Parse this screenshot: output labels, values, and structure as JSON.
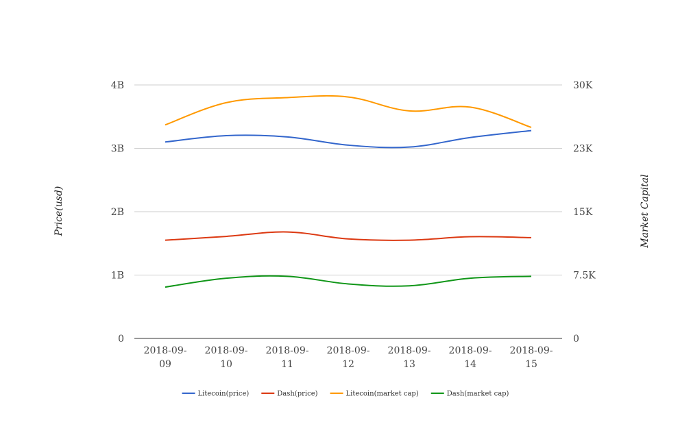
{
  "chart_data": {
    "type": "line",
    "categories": [
      "2018-09-09",
      "2018-09-10",
      "2018-09-11",
      "2018-09-12",
      "2018-09-13",
      "2018-09-14",
      "2018-09-15"
    ],
    "category_labels": [
      [
        "2018-09-",
        "09"
      ],
      [
        "2018-09-",
        "10"
      ],
      [
        "2018-09-",
        "11"
      ],
      [
        "2018-09-",
        "12"
      ],
      [
        "2018-09-",
        "13"
      ],
      [
        "2018-09-",
        "14"
      ],
      [
        "2018-09-",
        "15"
      ]
    ],
    "left_axis": {
      "title": "Price(usd)",
      "range": [
        0,
        4000000000
      ],
      "ticks": [
        0,
        1000000000,
        2000000000,
        3000000000,
        4000000000
      ],
      "tick_labels": [
        "0",
        "1B",
        "2B",
        "3B",
        "4B"
      ]
    },
    "right_axis": {
      "title": "Market Capital",
      "range": [
        0,
        30000
      ],
      "ticks": [
        0,
        7500,
        15000,
        22500,
        30000
      ],
      "tick_labels": [
        "0",
        "7.5K",
        "15K",
        "23K",
        "30K"
      ]
    },
    "series": [
      {
        "name": "Litecoin(price)",
        "color": "#3366cc",
        "axis": "left",
        "values": [
          3100000000,
          3200000000,
          3180000000,
          3050000000,
          3020000000,
          3170000000,
          3280000000
        ]
      },
      {
        "name": "Dash(price)",
        "color": "#dc3912",
        "axis": "left",
        "values": [
          1550000000,
          1610000000,
          1680000000,
          1570000000,
          1550000000,
          1605000000,
          1590000000
        ]
      },
      {
        "name": "Litecoin(market cap)",
        "color": "#ff9900",
        "axis": "left",
        "values": [
          3370000000,
          3720000000,
          3800000000,
          3810000000,
          3590000000,
          3650000000,
          3330000000
        ]
      },
      {
        "name": "Dash(market cap)",
        "color": "#109618",
        "axis": "left",
        "values": [
          810000000,
          950000000,
          980000000,
          860000000,
          830000000,
          950000000,
          980000000
        ]
      }
    ],
    "grid": true,
    "legend_position": "bottom"
  }
}
